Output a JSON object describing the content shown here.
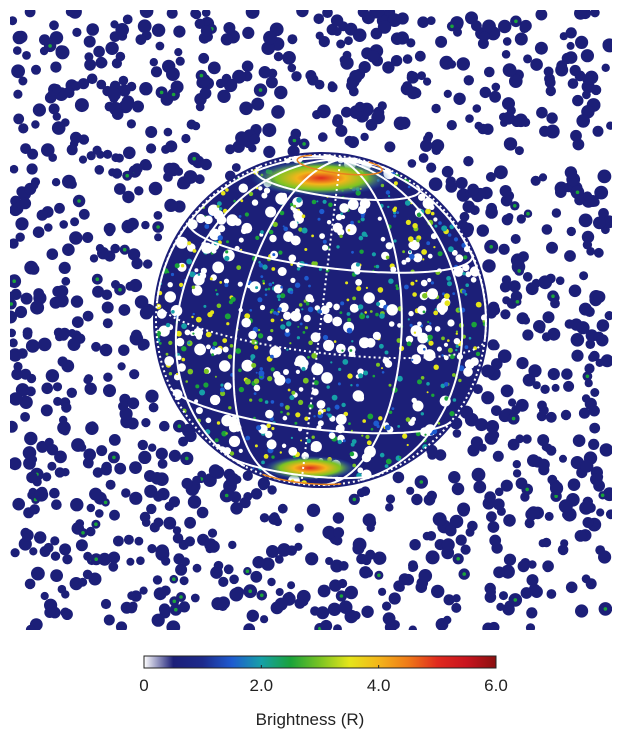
{
  "figure": {
    "colorbar": {
      "ticks": [
        {
          "label": "0",
          "value": 0
        },
        {
          "label": "2.0",
          "value": 2.0
        },
        {
          "label": "4.0",
          "value": 4.0
        },
        {
          "label": "6.0",
          "value": 6.0
        }
      ],
      "range": [
        0,
        6.0
      ],
      "title": "Brightness (R)",
      "colors": [
        "#ffffff",
        "#1c1f78",
        "#1d2a8c",
        "#1e5bd0",
        "#16a0a8",
        "#1aa33a",
        "#7ac423",
        "#e5e51a",
        "#f3b51a",
        "#ef7a18",
        "#e02a1e",
        "#c8141e",
        "#8b1010"
      ]
    },
    "background_color": "#ffffff",
    "noise_color": "#1c1f78",
    "grid_color": "#ffffff",
    "auroral_line_color": "#e8821e"
  }
}
